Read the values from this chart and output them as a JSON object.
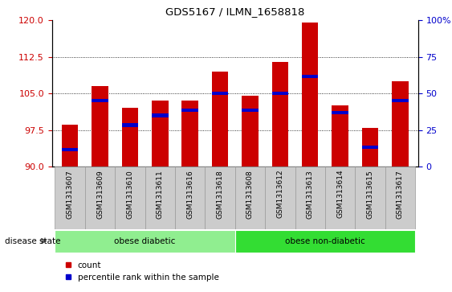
{
  "title": "GDS5167 / ILMN_1658818",
  "samples": [
    "GSM1313607",
    "GSM1313609",
    "GSM1313610",
    "GSM1313611",
    "GSM1313616",
    "GSM1313618",
    "GSM1313608",
    "GSM1313612",
    "GSM1313613",
    "GSM1313614",
    "GSM1313615",
    "GSM1313617"
  ],
  "bar_heights": [
    98.5,
    106.5,
    102.0,
    103.5,
    103.5,
    109.5,
    104.5,
    111.5,
    119.5,
    102.5,
    98.0,
    107.5
  ],
  "percentile_values": [
    93.5,
    103.5,
    98.5,
    100.5,
    101.5,
    105.0,
    101.5,
    105.0,
    108.5,
    101.0,
    94.0,
    103.5
  ],
  "ylim_left": [
    90,
    120
  ],
  "yticks_left": [
    90,
    97.5,
    105,
    112.5,
    120
  ],
  "ylim_right": [
    0,
    100
  ],
  "yticks_right": [
    0,
    25,
    50,
    75,
    100
  ],
  "groups": [
    {
      "label": "obese diabetic",
      "start": 0,
      "end": 5,
      "color": "#90EE90"
    },
    {
      "label": "obese non-diabetic",
      "start": 6,
      "end": 11,
      "color": "#33DD33"
    }
  ],
  "group_label": "disease state",
  "bar_color": "#CC0000",
  "percentile_color": "#0000CC",
  "bar_width": 0.55,
  "background_plot": "#ffffff",
  "tick_label_color_left": "#CC0000",
  "tick_label_color_right": "#0000CC",
  "xtick_bg": "#CCCCCC",
  "legend_count": "count",
  "legend_pct": "percentile rank within the sample"
}
